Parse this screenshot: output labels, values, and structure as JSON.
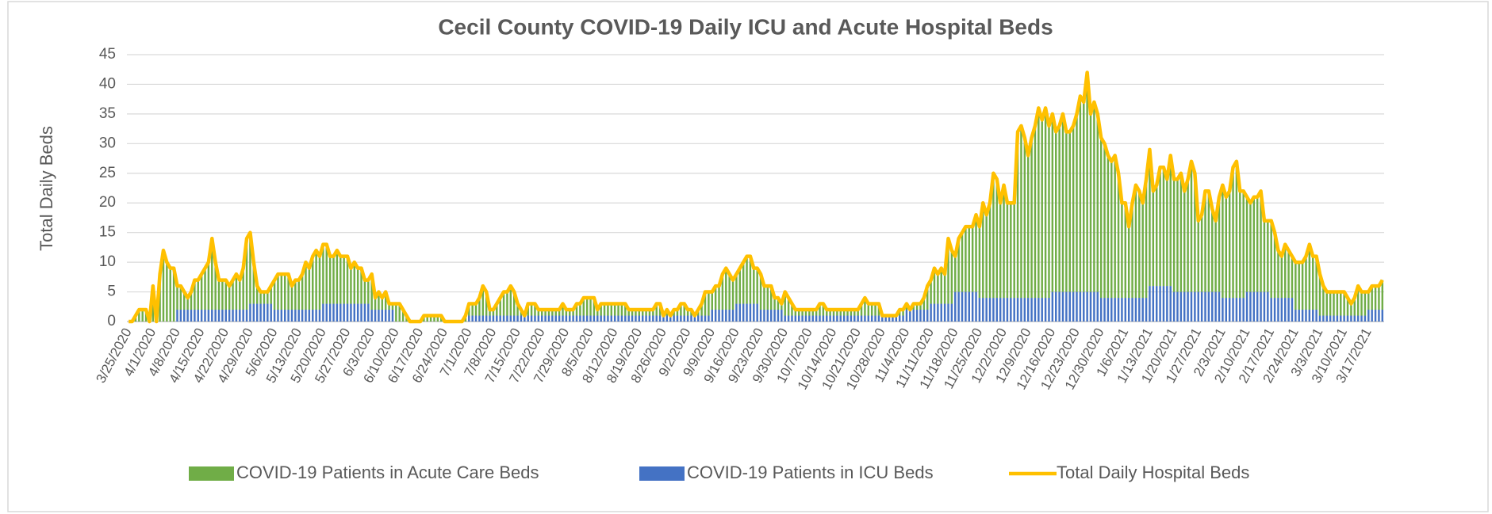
{
  "chart_data": {
    "type": "bar",
    "title": "Cecil County COVID-19 Daily ICU and Acute Hospital Beds",
    "y_label": "Total Daily Beds",
    "ylim": [
      0,
      45
    ],
    "yticks": [
      0,
      5,
      10,
      15,
      20,
      25,
      30,
      35,
      40,
      45
    ],
    "grid": true,
    "stacked": true,
    "legend": "bottom",
    "categories": [
      "3/25/2020",
      null,
      null,
      null,
      null,
      null,
      null,
      "4/1/2020",
      null,
      null,
      null,
      null,
      null,
      null,
      "4/8/2020",
      null,
      null,
      null,
      null,
      null,
      null,
      "4/15/2020",
      null,
      null,
      null,
      null,
      null,
      null,
      "4/22/2020",
      null,
      null,
      null,
      null,
      null,
      null,
      "4/29/2020",
      null,
      null,
      null,
      null,
      null,
      null,
      "5/6/2020",
      null,
      null,
      null,
      null,
      null,
      null,
      "5/13/2020",
      null,
      null,
      null,
      null,
      null,
      null,
      "5/20/2020",
      null,
      null,
      null,
      null,
      null,
      null,
      "5/27/2020",
      null,
      null,
      null,
      null,
      null,
      null,
      "6/3/2020",
      null,
      null,
      null,
      null,
      null,
      null,
      "6/10/2020",
      null,
      null,
      null,
      null,
      null,
      null,
      "6/17/2020",
      null,
      null,
      null,
      null,
      null,
      null,
      "6/24/2020",
      null,
      null,
      null,
      null,
      null,
      null,
      "7/1/2020",
      null,
      null,
      null,
      null,
      null,
      null,
      "7/8/2020",
      null,
      null,
      null,
      null,
      null,
      null,
      "7/15/2020",
      null,
      null,
      null,
      null,
      null,
      null,
      "7/22/2020",
      null,
      null,
      null,
      null,
      null,
      null,
      "7/29/2020",
      null,
      null,
      null,
      null,
      null,
      null,
      "8/5/2020",
      null,
      null,
      null,
      null,
      null,
      null,
      "8/12/2020",
      null,
      null,
      null,
      null,
      null,
      null,
      "8/19/2020",
      null,
      null,
      null,
      null,
      null,
      null,
      "8/26/2020",
      null,
      null,
      null,
      null,
      null,
      null,
      "9/2/2020",
      null,
      null,
      null,
      null,
      null,
      null,
      "9/9/2020",
      null,
      null,
      null,
      null,
      null,
      null,
      "9/16/2020",
      null,
      null,
      null,
      null,
      null,
      null,
      "9/23/2020",
      null,
      null,
      null,
      null,
      null,
      null,
      "9/30/2020",
      null,
      null,
      null,
      null,
      null,
      null,
      "10/7/2020",
      null,
      null,
      null,
      null,
      null,
      null,
      "10/14/2020",
      null,
      null,
      null,
      null,
      null,
      null,
      "10/21/2020",
      null,
      null,
      null,
      null,
      null,
      null,
      "10/28/2020",
      null,
      null,
      null,
      null,
      null,
      null,
      "11/4/2020",
      null,
      null,
      null,
      null,
      null,
      null,
      "11/11/2020",
      null,
      null,
      null,
      null,
      null,
      null,
      "11/18/2020",
      null,
      null,
      null,
      null,
      null,
      null,
      "11/25/2020",
      null,
      null,
      null,
      null,
      null,
      null,
      "12/2/2020",
      null,
      null,
      null,
      null,
      null,
      null,
      "12/9/2020",
      null,
      null,
      null,
      null,
      null,
      null,
      "12/16/2020",
      null,
      null,
      null,
      null,
      null,
      null,
      "12/23/2020",
      null,
      null,
      null,
      null,
      null,
      null,
      "12/30/2020",
      null,
      null,
      null,
      null,
      null,
      null,
      "1/6/2021",
      null,
      null,
      null,
      null,
      null,
      null,
      "1/13/2021",
      null,
      null,
      null,
      null,
      null,
      null,
      "1/20/2021",
      null,
      null,
      null,
      null,
      null,
      null,
      "1/27/2021",
      null,
      null,
      null,
      null,
      null,
      null,
      "2/3/2021",
      null,
      null,
      null,
      null,
      null,
      null,
      "2/10/2021",
      null,
      null,
      null,
      null,
      null,
      null,
      "2/17/2021",
      null,
      null,
      null,
      null,
      null,
      null,
      "2/24/2021",
      null,
      null,
      null,
      null,
      null,
      null,
      "3/3/2021",
      null,
      null,
      null,
      null,
      null,
      null,
      "3/10/2021",
      null,
      null,
      null,
      null,
      null,
      null,
      "3/17/2021",
      null,
      null,
      null,
      null
    ],
    "series": [
      {
        "name": "COVID-19 Patients in Acute Care Beds",
        "color": "#70ad47",
        "kind": "bar",
        "values": [
          0,
          0,
          1,
          2,
          2,
          2,
          0,
          6,
          0,
          8,
          12,
          10,
          9,
          9,
          4,
          4,
          3,
          2,
          3,
          5,
          5,
          6,
          7,
          8,
          12,
          8,
          5,
          5,
          5,
          4,
          5,
          6,
          5,
          7,
          12,
          12,
          7,
          3,
          2,
          2,
          2,
          3,
          5,
          6,
          6,
          6,
          6,
          4,
          5,
          5,
          6,
          8,
          7,
          9,
          10,
          9,
          10,
          10,
          8,
          8,
          9,
          8,
          8,
          8,
          6,
          7,
          6,
          6,
          4,
          4,
          6,
          2,
          3,
          2,
          3,
          1,
          1,
          3,
          3,
          2,
          1,
          0,
          0,
          0,
          0,
          1,
          1,
          1,
          1,
          1,
          1,
          0,
          0,
          0,
          0,
          0,
          0,
          1,
          2,
          2,
          2,
          3,
          5,
          4,
          1,
          1,
          2,
          3,
          4,
          4,
          5,
          4,
          2,
          1,
          0,
          2,
          2,
          2,
          1,
          1,
          1,
          1,
          1,
          1,
          1,
          2,
          1,
          1,
          1,
          2,
          2,
          3,
          3,
          3,
          3,
          1,
          2,
          2,
          2,
          2,
          2,
          2,
          2,
          2,
          1,
          1,
          1,
          1,
          1,
          1,
          1,
          1,
          2,
          2,
          0,
          1,
          0,
          1,
          1,
          2,
          2,
          1,
          1,
          0,
          1,
          2,
          4,
          4,
          3,
          4,
          4,
          6,
          7,
          6,
          5,
          5,
          6,
          7,
          8,
          8,
          6,
          6,
          6,
          4,
          4,
          4,
          2,
          2,
          1,
          4,
          3,
          2,
          1,
          1,
          1,
          1,
          1,
          1,
          1,
          2,
          2,
          1,
          1,
          1,
          1,
          1,
          1,
          1,
          1,
          1,
          1,
          2,
          3,
          2,
          2,
          2,
          2,
          0,
          0,
          0,
          0,
          0,
          1,
          1,
          1,
          0,
          1,
          1,
          1,
          2,
          4,
          4,
          6,
          5,
          6,
          5,
          11,
          9,
          6,
          9,
          10,
          11,
          11,
          11,
          13,
          12,
          16,
          14,
          16,
          21,
          20,
          16,
          19,
          16,
          16,
          16,
          28,
          29,
          27,
          24,
          27,
          29,
          32,
          30,
          32,
          29,
          30,
          27,
          28,
          30,
          27,
          27,
          28,
          30,
          33,
          32,
          37,
          30,
          32,
          30,
          27,
          26,
          24,
          23,
          24,
          21,
          16,
          16,
          12,
          16,
          19,
          18,
          16,
          20,
          23,
          16,
          17,
          20,
          20,
          18,
          22,
          19,
          19,
          20,
          17,
          19,
          22,
          20,
          12,
          13,
          17,
          17,
          14,
          12,
          16,
          19,
          17,
          18,
          22,
          23,
          18,
          18,
          16,
          15,
          16,
          16,
          17,
          12,
          12,
          13,
          11,
          8,
          7,
          9,
          8,
          7,
          8,
          8,
          8,
          9,
          11,
          9,
          9,
          7,
          5,
          4,
          4,
          4,
          4,
          4,
          4,
          3,
          2,
          3,
          5,
          4,
          4,
          3,
          4,
          4,
          4,
          5
        ]
      },
      {
        "name": "COVID-19 Patients in ICU Beds",
        "color": "#4472c4",
        "kind": "bar",
        "values": [
          0,
          0,
          0,
          0,
          0,
          0,
          0,
          0,
          0,
          0,
          0,
          0,
          0,
          0,
          2,
          2,
          2,
          2,
          2,
          2,
          2,
          2,
          2,
          2,
          2,
          2,
          2,
          2,
          2,
          2,
          2,
          2,
          2,
          2,
          2,
          3,
          3,
          3,
          3,
          3,
          3,
          3,
          2,
          2,
          2,
          2,
          2,
          2,
          2,
          2,
          2,
          2,
          2,
          2,
          2,
          2,
          3,
          3,
          3,
          3,
          3,
          3,
          3,
          3,
          3,
          3,
          3,
          3,
          3,
          3,
          2,
          2,
          2,
          2,
          2,
          2,
          2,
          0,
          0,
          0,
          0,
          0,
          0,
          0,
          0,
          0,
          0,
          0,
          0,
          0,
          0,
          0,
          0,
          0,
          0,
          0,
          0,
          0,
          1,
          1,
          1,
          1,
          1,
          1,
          1,
          1,
          1,
          1,
          1,
          1,
          1,
          1,
          1,
          1,
          1,
          1,
          1,
          1,
          1,
          1,
          1,
          1,
          1,
          1,
          1,
          1,
          1,
          1,
          1,
          1,
          1,
          1,
          1,
          1,
          1,
          1,
          1,
          1,
          1,
          1,
          1,
          1,
          1,
          1,
          1,
          1,
          1,
          1,
          1,
          1,
          1,
          1,
          1,
          1,
          1,
          1,
          1,
          1,
          1,
          1,
          1,
          1,
          1,
          1,
          1,
          1,
          1,
          1,
          2,
          2,
          2,
          2,
          2,
          2,
          2,
          3,
          3,
          3,
          3,
          3,
          3,
          3,
          2,
          2,
          2,
          2,
          2,
          2,
          2,
          1,
          1,
          1,
          1,
          1,
          1,
          1,
          1,
          1,
          1,
          1,
          1,
          1,
          1,
          1,
          1,
          1,
          1,
          1,
          1,
          1,
          1,
          1,
          1,
          1,
          1,
          1,
          1,
          1,
          1,
          1,
          1,
          1,
          1,
          1,
          2,
          2,
          2,
          2,
          2,
          2,
          2,
          3,
          3,
          3,
          3,
          3,
          3,
          3,
          5,
          5,
          5,
          5,
          5,
          5,
          5,
          4,
          4,
          4,
          4,
          4,
          4,
          4,
          4,
          4,
          4,
          4,
          4,
          4,
          4,
          4,
          4,
          4,
          4,
          4,
          4,
          4,
          5,
          5,
          5,
          5,
          5,
          5,
          5,
          5,
          5,
          5,
          5,
          5,
          5,
          5,
          4,
          4,
          4,
          4,
          4,
          4,
          4,
          4,
          4,
          4,
          4,
          4,
          4,
          4,
          6,
          6,
          6,
          6,
          6,
          6,
          6,
          5,
          5,
          5,
          5,
          5,
          5,
          5,
          5,
          5,
          5,
          5,
          5,
          5,
          5,
          4,
          4,
          4,
          4,
          4,
          4,
          4,
          5,
          5,
          5,
          5,
          5,
          5,
          5,
          4,
          4,
          4,
          4,
          4,
          4,
          4,
          2,
          2,
          2,
          2,
          2,
          2,
          2,
          1,
          1,
          1,
          1,
          1,
          1,
          1,
          1,
          1,
          1,
          1,
          1,
          1,
          1,
          2,
          2,
          2,
          2,
          2
        ]
      },
      {
        "name": "Total Daily Hospital Beds",
        "color": "#ffc000",
        "kind": "line",
        "values": [
          0,
          0,
          1,
          2,
          2,
          2,
          0,
          6,
          0,
          8,
          12,
          10,
          9,
          9,
          6,
          6,
          5,
          4,
          5,
          7,
          7,
          8,
          9,
          10,
          14,
          10,
          7,
          7,
          7,
          6,
          7,
          8,
          7,
          9,
          14,
          15,
          10,
          6,
          5,
          5,
          5,
          6,
          7,
          8,
          8,
          8,
          8,
          6,
          7,
          7,
          8,
          10,
          9,
          11,
          12,
          11,
          13,
          13,
          11,
          11,
          12,
          11,
          11,
          11,
          9,
          10,
          9,
          9,
          7,
          7,
          8,
          4,
          5,
          4,
          5,
          3,
          3,
          3,
          3,
          2,
          1,
          0,
          0,
          0,
          0,
          1,
          1,
          1,
          1,
          1,
          1,
          0,
          0,
          0,
          0,
          0,
          0,
          1,
          3,
          3,
          3,
          4,
          6,
          5,
          2,
          2,
          3,
          4,
          5,
          5,
          6,
          5,
          3,
          2,
          1,
          3,
          3,
          3,
          2,
          2,
          2,
          2,
          2,
          2,
          2,
          3,
          2,
          2,
          2,
          3,
          3,
          4,
          4,
          4,
          4,
          2,
          3,
          3,
          3,
          3,
          3,
          3,
          3,
          3,
          2,
          2,
          2,
          2,
          2,
          2,
          2,
          2,
          3,
          3,
          1,
          2,
          1,
          2,
          2,
          3,
          3,
          2,
          2,
          1,
          2,
          3,
          5,
          5,
          5,
          6,
          6,
          8,
          9,
          8,
          7,
          8,
          9,
          10,
          11,
          11,
          9,
          9,
          8,
          6,
          6,
          6,
          4,
          4,
          3,
          5,
          4,
          3,
          2,
          2,
          2,
          2,
          2,
          2,
          2,
          3,
          3,
          2,
          2,
          2,
          2,
          2,
          2,
          2,
          2,
          2,
          2,
          3,
          4,
          3,
          3,
          3,
          3,
          1,
          1,
          1,
          1,
          1,
          2,
          2,
          3,
          2,
          3,
          3,
          3,
          4,
          6,
          7,
          9,
          8,
          9,
          8,
          14,
          12,
          11,
          14,
          15,
          16,
          16,
          16,
          18,
          16,
          20,
          18,
          20,
          25,
          24,
          20,
          23,
          20,
          20,
          20,
          32,
          33,
          31,
          28,
          31,
          33,
          36,
          34,
          36,
          33,
          35,
          32,
          33,
          35,
          32,
          32,
          33,
          35,
          38,
          37,
          42,
          35,
          37,
          35,
          31,
          30,
          28,
          27,
          28,
          25,
          20,
          20,
          16,
          20,
          23,
          22,
          20,
          24,
          29,
          22,
          23,
          26,
          26,
          24,
          28,
          24,
          24,
          25,
          22,
          24,
          27,
          25,
          17,
          18,
          22,
          22,
          19,
          17,
          21,
          23,
          21,
          22,
          26,
          27,
          22,
          22,
          21,
          20,
          21,
          21,
          22,
          17,
          17,
          17,
          15,
          12,
          11,
          13,
          12,
          11,
          10,
          10,
          10,
          11,
          13,
          11,
          11,
          8,
          6,
          5,
          5,
          5,
          5,
          5,
          5,
          4,
          3,
          4,
          6,
          5,
          5,
          5,
          6,
          6,
          6,
          7
        ]
      }
    ]
  }
}
